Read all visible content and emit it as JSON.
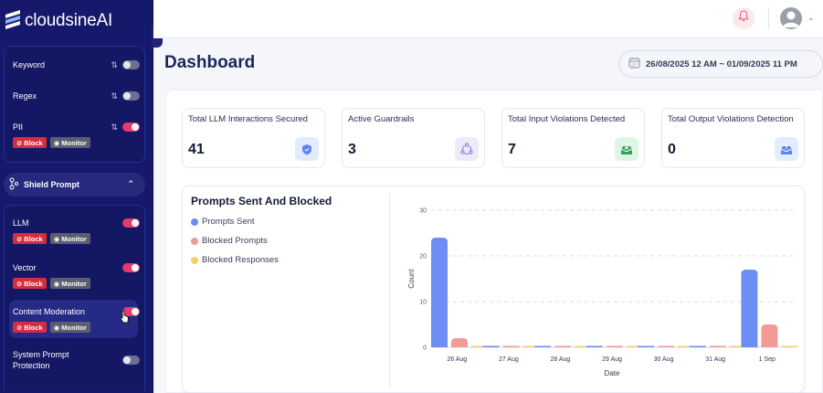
{
  "brand": {
    "name": "cloudsineAI"
  },
  "sidebar": {
    "rules": [
      {
        "label": "Keyword",
        "enabled": false
      },
      {
        "label": "Regex",
        "enabled": false
      },
      {
        "label": "PII",
        "enabled": true,
        "chips": [
          "Block",
          "Monitor"
        ]
      }
    ],
    "section": {
      "label": "Shield Prompt"
    },
    "shield_items": [
      {
        "label": "LLM",
        "enabled": true,
        "chips": [
          "Block",
          "Monitor"
        ]
      },
      {
        "label": "Vector",
        "enabled": true,
        "chips": [
          "Block",
          "Monitor"
        ]
      },
      {
        "label": "Content Moderation",
        "enabled": true,
        "chips": [
          "Block",
          "Monitor"
        ]
      },
      {
        "label": "System Prompt Protection",
        "enabled": false
      }
    ],
    "chip_block": "Block",
    "chip_monitor": "Monitor"
  },
  "header": {
    "title": "Dashboard",
    "date_range": "26/08/2025 12 AM ~ 01/09/2025 11 PM"
  },
  "stats": [
    {
      "title": "Total LLM Interactions Secured",
      "value": "41",
      "icon": "shield-icon"
    },
    {
      "title": "Active Guardrails",
      "value": "3",
      "icon": "cycle-icon"
    },
    {
      "title": "Total Input Violations Detected",
      "value": "7",
      "icon": "inbox-download-icon"
    },
    {
      "title": "Total Output Violations Detection",
      "value": "0",
      "icon": "inbox-upload-icon"
    }
  ],
  "colors": {
    "sent": "#6c8ef5",
    "blocked_prompts": "#f19a96",
    "blocked_responses": "#f3cf6b",
    "accent": "#e53a6b"
  },
  "chart_data": {
    "type": "bar",
    "title": "Prompts Sent And Blocked",
    "xlabel": "Date",
    "ylabel": "Count",
    "ylim": [
      0,
      30
    ],
    "yticks": [
      "0",
      "10",
      "20",
      "30"
    ],
    "grid": true,
    "legend_position": "left",
    "categories": [
      "26 Aug",
      "27 Aug",
      "28 Aug",
      "29 Aug",
      "30 Aug",
      "31 Aug",
      "1 Sep"
    ],
    "series": [
      {
        "name": "Prompts Sent",
        "values": [
          24,
          0,
          0,
          0,
          0,
          0,
          17
        ]
      },
      {
        "name": "Blocked Prompts",
        "values": [
          2,
          0,
          0,
          0,
          0,
          0,
          5
        ]
      },
      {
        "name": "Blocked Responses",
        "values": [
          0,
          0,
          0,
          0,
          0,
          0,
          0
        ]
      }
    ]
  }
}
